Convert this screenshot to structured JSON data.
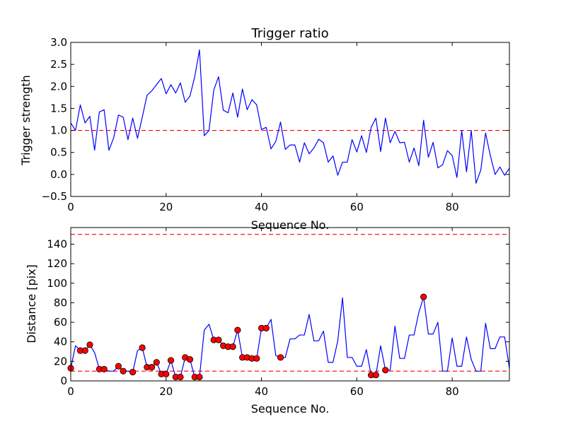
{
  "chart_data": [
    {
      "type": "line",
      "title": "Trigger ratio",
      "xlabel": "Sequence No.",
      "ylabel": "Trigger strength",
      "xlim": [
        0,
        92
      ],
      "ylim": [
        -0.5,
        3.0
      ],
      "xticks": [
        0,
        20,
        40,
        60,
        80
      ],
      "xtick_labels": [
        "0",
        "20",
        "40",
        "60",
        "80"
      ],
      "yticks": [
        -0.5,
        0.0,
        0.5,
        1.0,
        1.5,
        2.0,
        2.5,
        3.0
      ],
      "ytick_labels": [
        "−0.5",
        "0.0",
        "0.5",
        "1.0",
        "1.5",
        "2.0",
        "2.5",
        "3.0"
      ],
      "series": [
        {
          "name": "trigger strength",
          "color": "#0000ff",
          "x": [
            0,
            1,
            2,
            3,
            4,
            5,
            6,
            7,
            8,
            9,
            10,
            11,
            12,
            13,
            14,
            15,
            16,
            17,
            18,
            19,
            20,
            21,
            22,
            23,
            24,
            25,
            26,
            27,
            28,
            29,
            30,
            31,
            32,
            33,
            34,
            35,
            36,
            37,
            38,
            39,
            40,
            41,
            42,
            43,
            44,
            45,
            46,
            47,
            48,
            49,
            50,
            51,
            52,
            53,
            54,
            55,
            56,
            57,
            58,
            59,
            60,
            61,
            62,
            63,
            64,
            65,
            66,
            67,
            68,
            69,
            70,
            71,
            72,
            73,
            74,
            75,
            76,
            77,
            78,
            79,
            80,
            81,
            82,
            83,
            84,
            85,
            86,
            87,
            88,
            89,
            90,
            91,
            92
          ],
          "y": [
            1.17,
            1.0,
            1.58,
            1.17,
            1.32,
            0.55,
            1.42,
            1.47,
            0.55,
            0.83,
            1.35,
            1.3,
            0.79,
            1.28,
            0.82,
            1.3,
            1.8,
            1.9,
            2.04,
            2.18,
            1.83,
            2.04,
            1.85,
            2.08,
            1.64,
            1.78,
            2.22,
            2.83,
            0.88,
            1.0,
            1.92,
            2.22,
            1.46,
            1.4,
            1.85,
            1.3,
            1.94,
            1.47,
            1.7,
            1.58,
            1.02,
            1.07,
            0.58,
            0.75,
            1.19,
            0.57,
            0.67,
            0.67,
            0.28,
            0.72,
            0.47,
            0.6,
            0.8,
            0.72,
            0.28,
            0.42,
            -0.02,
            0.28,
            0.28,
            0.79,
            0.51,
            0.88,
            0.5,
            1.07,
            1.28,
            0.52,
            1.28,
            0.72,
            0.98,
            0.72,
            0.73,
            0.28,
            0.6,
            0.2,
            1.23,
            0.39,
            0.73,
            0.15,
            0.22,
            0.54,
            0.43,
            -0.07,
            1.0,
            0.06,
            1.0,
            -0.2,
            0.1,
            0.94,
            0.43,
            0.0,
            0.17,
            -0.02,
            0.14
          ]
        }
      ],
      "reference_lines": [
        {
          "y": 1.0,
          "color": "#ff0000",
          "style": "dashed"
        }
      ]
    },
    {
      "type": "line",
      "title": "",
      "xlabel": "Sequence No.",
      "ylabel": "Distance [pix]",
      "xlim": [
        0,
        92
      ],
      "ylim": [
        0,
        157
      ],
      "xticks": [
        0,
        20,
        40,
        60,
        80
      ],
      "xtick_labels": [
        "0",
        "20",
        "40",
        "60",
        "80"
      ],
      "yticks": [
        0,
        20,
        40,
        60,
        80,
        100,
        120,
        140
      ],
      "ytick_labels": [
        "0",
        "20",
        "40",
        "60",
        "80",
        "100",
        "120",
        "140"
      ],
      "series": [
        {
          "name": "distance",
          "color": "#0000ff",
          "x": [
            0,
            1,
            2,
            3,
            4,
            5,
            6,
            7,
            8,
            9,
            10,
            11,
            12,
            13,
            14,
            15,
            16,
            17,
            18,
            19,
            20,
            21,
            22,
            23,
            24,
            25,
            26,
            27,
            28,
            29,
            30,
            31,
            32,
            33,
            34,
            35,
            36,
            37,
            38,
            39,
            40,
            41,
            42,
            43,
            44,
            45,
            46,
            47,
            48,
            49,
            50,
            51,
            52,
            53,
            54,
            55,
            56,
            57,
            58,
            59,
            60,
            61,
            62,
            63,
            64,
            65,
            66,
            67,
            68,
            69,
            70,
            71,
            72,
            73,
            74,
            75,
            76,
            77,
            78,
            79,
            80,
            81,
            82,
            83,
            84,
            85,
            86,
            87,
            88,
            89,
            90,
            91,
            92
          ],
          "y": [
            13,
            36,
            31,
            31,
            37,
            29,
            12,
            12,
            10,
            10,
            15,
            10,
            10,
            9,
            31,
            34,
            14,
            14,
            19,
            7,
            7,
            21,
            4,
            4,
            24,
            22,
            4,
            4,
            52,
            58,
            42,
            42,
            36,
            35,
            35,
            52,
            24,
            24,
            23,
            23,
            54,
            54,
            63,
            26,
            24,
            24,
            43,
            43,
            47,
            47,
            68,
            41,
            41,
            51,
            19,
            19,
            41,
            85,
            24,
            24,
            15,
            15,
            32,
            6,
            6,
            36,
            11,
            11,
            56,
            23,
            23,
            47,
            47,
            70,
            86,
            48,
            48,
            60,
            10,
            10,
            44,
            15,
            15,
            45,
            22,
            10,
            10,
            59,
            33,
            33,
            45,
            45,
            13
          ]
        }
      ],
      "markers": {
        "color": "#ff0000",
        "x": [
          0,
          2,
          3,
          4,
          6,
          7,
          10,
          11,
          13,
          15,
          16,
          17,
          18,
          19,
          20,
          21,
          22,
          23,
          24,
          25,
          26,
          27,
          30,
          31,
          32,
          33,
          34,
          35,
          36,
          37,
          38,
          39,
          40,
          41,
          44,
          63,
          64,
          66,
          74
        ],
        "y": [
          13,
          31,
          31,
          37,
          12,
          12,
          15,
          10,
          9,
          34,
          14,
          14,
          19,
          7,
          7,
          21,
          4,
          4,
          24,
          22,
          4,
          4,
          42,
          42,
          36,
          35,
          35,
          52,
          24,
          24,
          23,
          23,
          54,
          54,
          24,
          6,
          6,
          11,
          86
        ]
      },
      "reference_lines": [
        {
          "y": 150,
          "color": "#ff0000",
          "style": "dashed"
        },
        {
          "y": 10,
          "color": "#ff0000",
          "style": "dashed"
        }
      ]
    }
  ]
}
